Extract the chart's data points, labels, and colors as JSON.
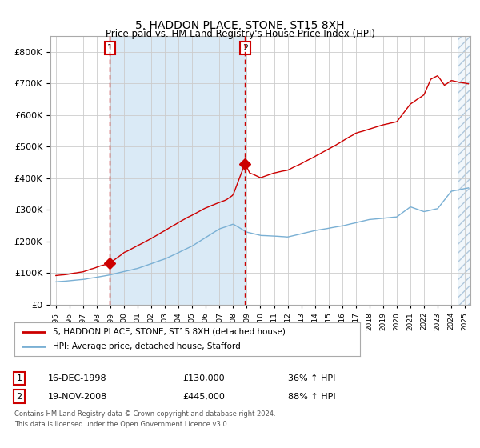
{
  "title": "5, HADDON PLACE, STONE, ST15 8XH",
  "subtitle": "Price paid vs. HM Land Registry's House Price Index (HPI)",
  "hpi_label": "HPI: Average price, detached house, Stafford",
  "property_label": "5, HADDON PLACE, STONE, ST15 8XH (detached house)",
  "sale1_date": "16-DEC-1998",
  "sale1_price": 130000,
  "sale1_hpi_text": "36% ↑ HPI",
  "sale2_date": "19-NOV-2008",
  "sale2_price": 445000,
  "sale2_hpi_text": "88% ↑ HPI",
  "sale1_year": 1998.96,
  "sale2_year": 2008.88,
  "property_color": "#cc0000",
  "hpi_color": "#7ab0d4",
  "background_color": "#ffffff",
  "shaded_region_color": "#daeaf6",
  "grid_color": "#cccccc",
  "footnote_line1": "Contains HM Land Registry data © Crown copyright and database right 2024.",
  "footnote_line2": "This data is licensed under the Open Government Licence v3.0.",
  "ylim": [
    0,
    850000
  ],
  "xlim_start": 1994.6,
  "xlim_end": 2025.4
}
